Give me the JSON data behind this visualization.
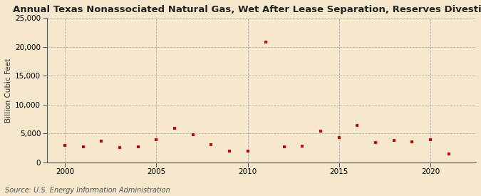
{
  "title": "Annual Texas Nonassociated Natural Gas, Wet After Lease Separation, Reserves Divestitures",
  "ylabel": "Billion Cubic Feet",
  "source": "Source: U.S. Energy Information Administration",
  "background_color": "#f5e8cc",
  "plot_bg_color": "#f5e8cc",
  "marker_color": "#cc0000",
  "years": [
    2000,
    2001,
    2002,
    2003,
    2004,
    2005,
    2006,
    2007,
    2008,
    2009,
    2010,
    2011,
    2012,
    2013,
    2014,
    2015,
    2016,
    2017,
    2018,
    2019,
    2020,
    2021
  ],
  "values": [
    2900,
    2700,
    3700,
    2500,
    2700,
    3900,
    5900,
    4800,
    3100,
    1900,
    2000,
    20800,
    2700,
    2800,
    5400,
    4300,
    6400,
    3400,
    3800,
    3500,
    3900,
    1500
  ],
  "xlim": [
    1999,
    2022.5
  ],
  "ylim": [
    0,
    25000
  ],
  "yticks": [
    0,
    5000,
    10000,
    15000,
    20000,
    25000
  ],
  "xticks": [
    2000,
    2005,
    2010,
    2015,
    2020
  ],
  "title_fontsize": 9.5,
  "label_fontsize": 7.5,
  "tick_fontsize": 7.5,
  "source_fontsize": 7.0
}
